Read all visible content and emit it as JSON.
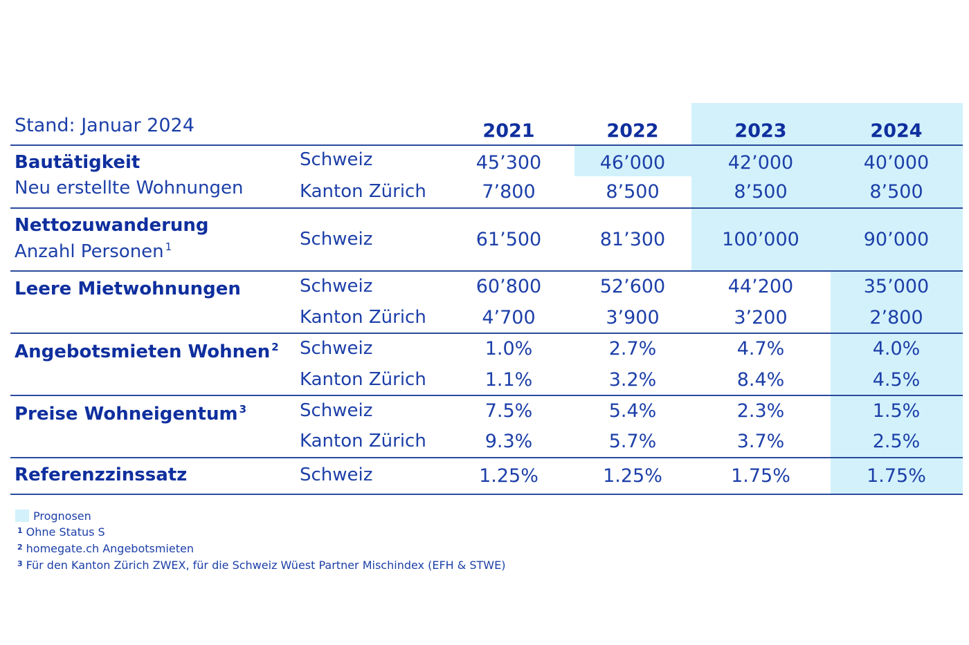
{
  "stand": "Stand: Januar 2024",
  "years": [
    "2021",
    "2022",
    "2023",
    "2024"
  ],
  "sections": [
    {
      "title": "Bautätigkeit",
      "subtitle": "Neu erstellte Wohnungen",
      "rows": [
        {
          "region": "Schweiz",
          "values": [
            "45’300",
            "46’000",
            "42’000",
            "40’000"
          ]
        },
        {
          "region": "Kanton Zürich",
          "values": [
            "7’800",
            "8’500",
            "8’500",
            "8’500"
          ]
        }
      ]
    },
    {
      "title": "Nettozuwanderung",
      "subtitle": "Anzahl Personen",
      "subtitle_fn": "1",
      "rows": [
        {
          "region": "Schweiz",
          "values": [
            "61’500",
            "81’300",
            "100’000",
            "90’000"
          ]
        }
      ]
    },
    {
      "title": "Leere Mietwohnungen",
      "rows": [
        {
          "region": "Schweiz",
          "values": [
            "60’800",
            "52’600",
            "44’200",
            "35’000"
          ]
        },
        {
          "region": "Kanton Zürich",
          "values": [
            "4’700",
            "3’900",
            "3’200",
            "2’800"
          ]
        }
      ]
    },
    {
      "title": "Angebotsmieten Wohnen",
      "title_fn": "2",
      "rows": [
        {
          "region": "Schweiz",
          "values": [
            "1.0%",
            "2.7%",
            "4.7%",
            "4.0%"
          ]
        },
        {
          "region": "Kanton Zürich",
          "values": [
            "1.1%",
            "3.2%",
            "8.4%",
            "4.5%"
          ]
        }
      ]
    },
    {
      "title": "Preise Wohneigentum",
      "title_fn": "3",
      "rows": [
        {
          "region": "Schweiz",
          "values": [
            "7.5%",
            "5.4%",
            "2.3%",
            "1.5%"
          ]
        },
        {
          "region": "Kanton Zürich",
          "values": [
            "9.3%",
            "5.7%",
            "3.7%",
            "2.5%"
          ]
        }
      ]
    },
    {
      "title": "Referenzzinssatz",
      "rows": [
        {
          "region": "Schweiz",
          "values": [
            "1.25%",
            "1.25%",
            "1.75%",
            "1.75%"
          ]
        }
      ]
    }
  ],
  "legend": {
    "label": "Prognosen",
    "color": "#d2f1fb"
  },
  "footnotes": [
    {
      "num": "1",
      "text": "Ohne Status S"
    },
    {
      "num": "2",
      "text": "homegate.ch Angebotsmieten"
    },
    {
      "num": "3",
      "text": "Für den Kanton Zürich ZWEX, für die Schweiz Wüest Partner Mischindex (EFH & STWE)"
    }
  ]
}
